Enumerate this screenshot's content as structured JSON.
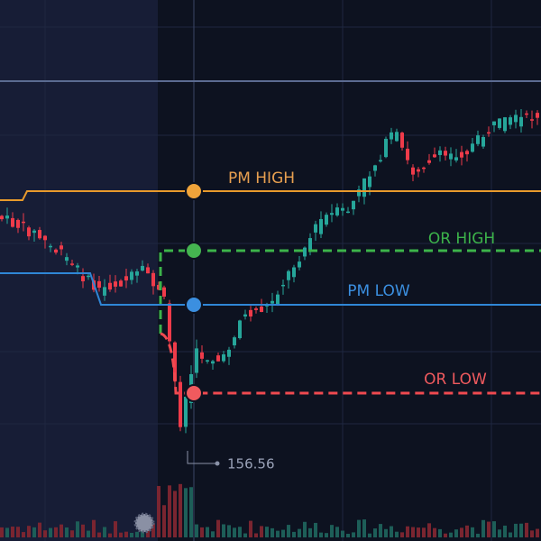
{
  "levels": {
    "pm_high": "PM HIGH",
    "or_high": "OR HIGH",
    "pm_low": "PM LOW",
    "or_low": "OR LOW"
  },
  "low_marker": "156.56"
}
